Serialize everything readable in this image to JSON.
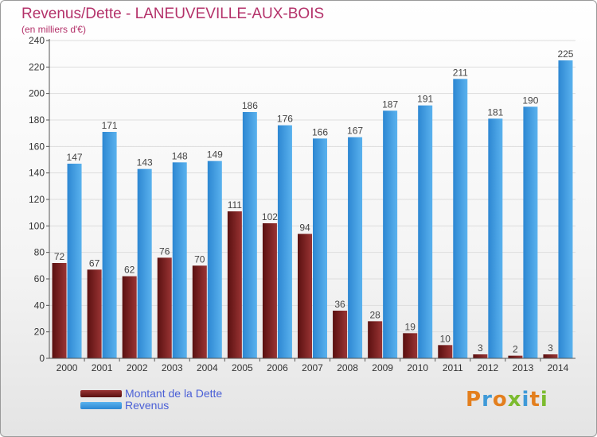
{
  "chart_data": {
    "type": "bar",
    "title": "Revenus/Dette - LANEUVEVILLE-AUX-BOIS",
    "subtitle": "(en milliers d'€)",
    "categories": [
      "2000",
      "2001",
      "2002",
      "2003",
      "2004",
      "2005",
      "2006",
      "2007",
      "2008",
      "2009",
      "2010",
      "2011",
      "2012",
      "2013",
      "2014"
    ],
    "series": [
      {
        "name": "Montant de la Dette",
        "color": "#7a1a1a",
        "values": [
          72,
          67,
          62,
          76,
          70,
          111,
          102,
          94,
          36,
          28,
          19,
          10,
          3,
          2,
          3
        ]
      },
      {
        "name": "Revenus",
        "color": "#3a98e0",
        "values": [
          147,
          171,
          143,
          148,
          149,
          186,
          176,
          166,
          167,
          187,
          191,
          211,
          181,
          190,
          225
        ]
      }
    ],
    "yticks": [
      0,
      20,
      40,
      60,
      80,
      100,
      120,
      140,
      160,
      180,
      200,
      220,
      240
    ],
    "ylim": [
      0,
      240
    ],
    "grid": true,
    "legend_position": "bottom-left"
  },
  "branding": {
    "logo_letters": [
      "P",
      "r",
      "o",
      "x",
      "i",
      "t",
      "i"
    ],
    "logo_colors": [
      "#e37f1e",
      "#3f9ad8",
      "#e37f1e",
      "#7cbb2f",
      "#3f9ad8",
      "#e37f1e",
      "#7cbb2f"
    ]
  }
}
